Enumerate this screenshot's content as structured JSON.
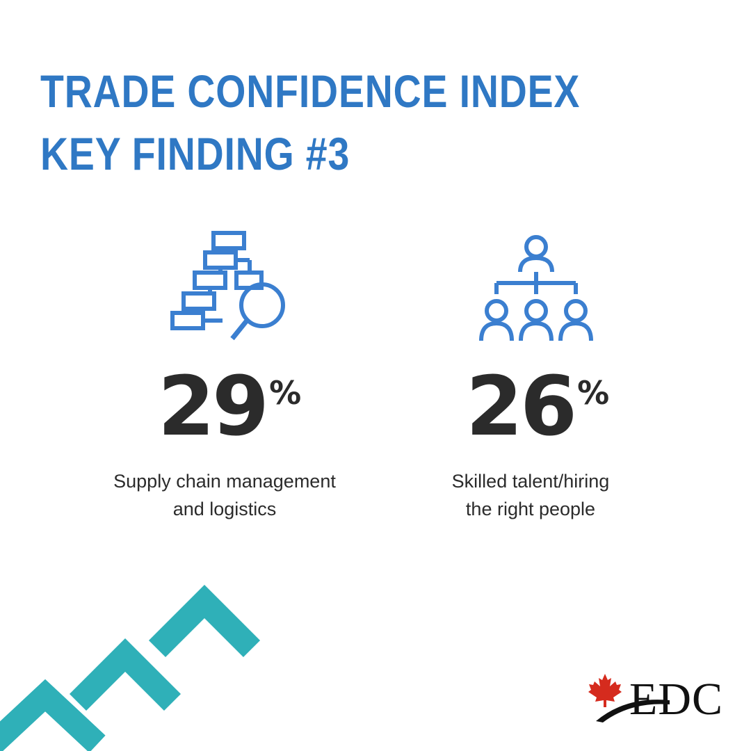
{
  "header": {
    "title_line1": "TRADE CONFIDENCE INDEX",
    "title_line2": "KEY FINDING #3"
  },
  "stats": [
    {
      "icon": "hierarchy-search-icon",
      "value": "29",
      "unit": "%",
      "label_line1": "Supply chain management",
      "label_line2": "and logistics"
    },
    {
      "icon": "org-chart-people-icon",
      "value": "26",
      "unit": "%",
      "label_line1": "Skilled talent/hiring",
      "label_line2": "the right people"
    }
  ],
  "logo": {
    "text": "EDC",
    "icon": "maple-leaf-icon"
  },
  "colors": {
    "title": "#2f78c4",
    "icon_stroke": "#3b7fd0",
    "text": "#2b2b2b",
    "chevron": "#2fb0b8",
    "leaf": "#d52b1e"
  }
}
